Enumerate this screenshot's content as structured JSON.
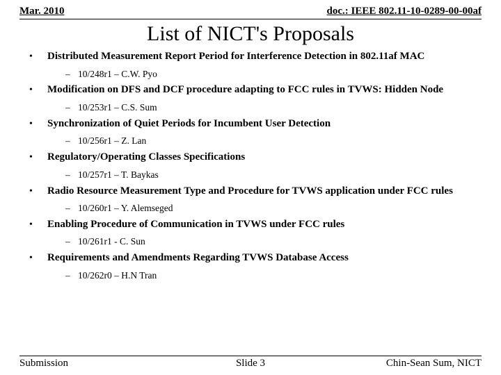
{
  "header": {
    "left": "Mar. 2010",
    "right": "doc.: IEEE 802.11-10-0289-00-00af"
  },
  "title": "List of NICT's Proposals",
  "proposals": [
    {
      "title": "Distributed Measurement Report Period for Interference Detection in 802.11af MAC",
      "ref": "10/248r1 – C.W. Pyo"
    },
    {
      "title": "Modification on DFS and DCF procedure adapting to FCC rules in TVWS: Hidden Node",
      "ref": "10/253r1 – C.S. Sum"
    },
    {
      "title": "Synchronization of Quiet Periods for Incumbent User Detection",
      "ref": "10/256r1 – Z. Lan"
    },
    {
      "title": "Regulatory/Operating Classes Specifications",
      "ref": "10/257r1 – T. Baykas"
    },
    {
      "title": "Radio Resource Measurement Type and Procedure for TVWS application under FCC rules",
      "ref": "10/260r1 – Y. Alemseged"
    },
    {
      "title": "Enabling Procedure of Communication in TVWS under FCC rules",
      "ref": "10/261r1 - C. Sun"
    },
    {
      "title": "Requirements and Amendments Regarding TVWS Database Access",
      "ref": "10/262r0 – H.N Tran"
    }
  ],
  "footer": {
    "left": "Submission",
    "center": "Slide 3",
    "right": "Chin-Sean Sum, NICT"
  }
}
